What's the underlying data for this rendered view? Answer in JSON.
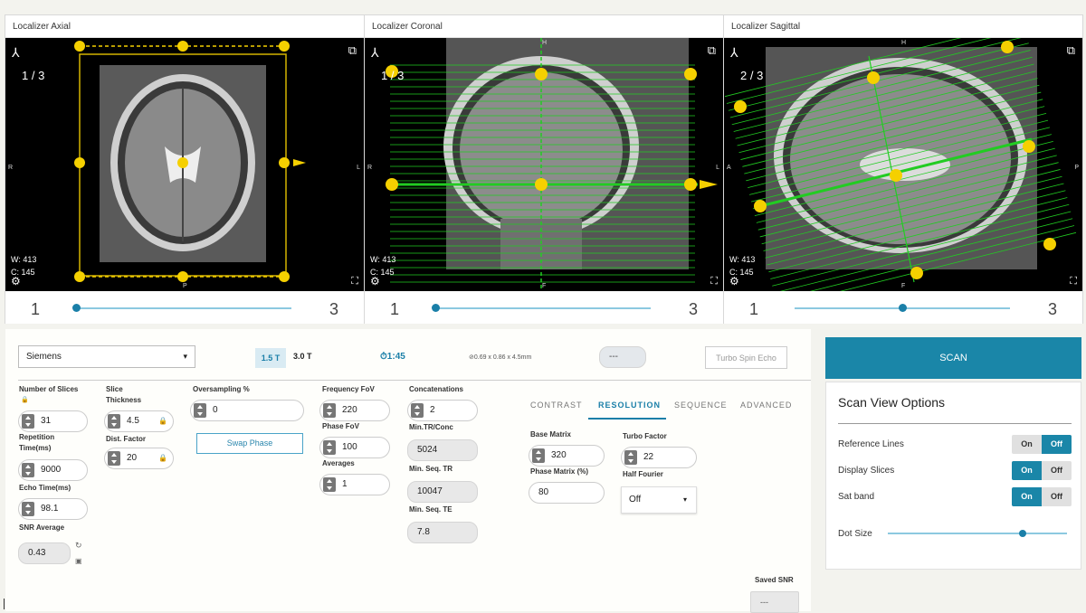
{
  "viewers": [
    {
      "title": "Localizer Axial",
      "slice": "1 / 3",
      "w": "W: 413",
      "c": "C: 145",
      "top": "",
      "bottom": "P",
      "left": "R",
      "right": "L",
      "slider_min": "1",
      "slider_max": "3",
      "slider_pos": 0.0
    },
    {
      "title": "Localizer Coronal",
      "slice": "1 / 3",
      "w": "W: 413",
      "c": "C: 145",
      "top": "H",
      "bottom": "F",
      "left": "R",
      "right": "L",
      "slider_min": "1",
      "slider_max": "3",
      "slider_pos": 0.0
    },
    {
      "title": "Localizer Sagittal",
      "slice": "2 / 3",
      "w": "W: 413",
      "c": "C: 145",
      "top": "H",
      "bottom": "F",
      "left": "A",
      "right": "P",
      "slider_min": "1",
      "slider_max": "3",
      "slider_pos": 0.5
    }
  ],
  "protocol": {
    "vendor": "Siemens",
    "field_1": "1.5 T",
    "field_2": "3.0 T",
    "time": "⏱1:45",
    "voxel": "⊘0.69 x 0.86 x 4.5mm",
    "dash": "---",
    "sequence_chip": "Turbo Spin Echo"
  },
  "params": {
    "num_slices_label": "Number of Slices",
    "num_slices": "31",
    "tr_label_1": "Repetition",
    "tr_label_2": "Time(ms)",
    "tr": "9000",
    "te_label": "Echo Time(ms)",
    "te": "98.1",
    "snr_label": "SNR Average",
    "snr": "0.43",
    "thick_label_1": "Slice",
    "thick_label_2": "Thickness",
    "thick": "4.5",
    "dist_label": "Dist. Factor",
    "dist": "20",
    "over_label": "Oversampling %",
    "over": "0",
    "swap": "Swap Phase",
    "freq_label": "Frequency FoV",
    "freq": "220",
    "phase_label": "Phase FoV",
    "phase": "100",
    "avg_label": "Averages",
    "avg": "1",
    "conc_label": "Concatenations",
    "conc": "2",
    "mintr_conc_label": "Min.TR/Conc",
    "mintr_conc": "5024",
    "minseqtr_label": "Min. Seq. TR",
    "minseqtr": "10047",
    "minseqte_label": "Min. Seq. TE",
    "minseqte": "7.8",
    "saved_snr_label": "Saved SNR",
    "saved_snr": "---"
  },
  "tabs": [
    "CONTRAST",
    "RESOLUTION",
    "SEQUENCE",
    "ADVANCED"
  ],
  "resolution": {
    "base_label": "Base Matrix",
    "base": "320",
    "phase_label": "Phase Matrix (%)",
    "phase": "80",
    "turbo_label": "Turbo Factor",
    "turbo": "22",
    "hf_label": "Half Fourier",
    "hf": "Off"
  },
  "scan_button": "SCAN",
  "options": {
    "title": "Scan View Options",
    "on": "On",
    "off": "Off",
    "items": [
      {
        "label": "Reference Lines",
        "state": "off"
      },
      {
        "label": "Display Slices",
        "state": "on"
      },
      {
        "label": "Sat band",
        "state": "on"
      }
    ],
    "dot_label": "Dot Size",
    "dot_value": 0.75
  },
  "colors": {
    "accent": "#1a86a8",
    "overlay_green": "#22cc22",
    "handle_yellow": "#f5d000"
  }
}
